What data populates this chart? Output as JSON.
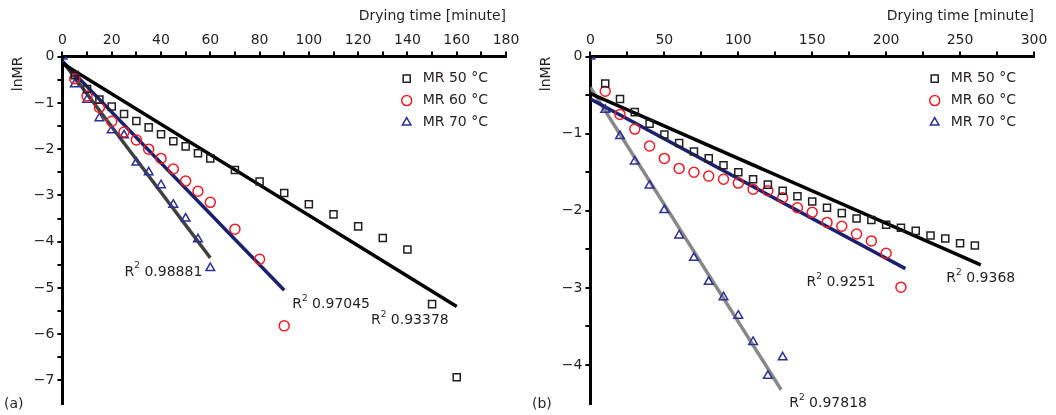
{
  "chart_data": [
    {
      "type": "scatter",
      "xlabel": "Drying time [minute]",
      "ylabel": "lnMR",
      "xlim": [
        0,
        180
      ],
      "ylim": [
        -7.5,
        0
      ],
      "xticks": [
        0,
        {
          "value": 10,
          "label": null
        },
        20,
        {
          "value": 30,
          "label": null
        },
        40,
        {
          "value": 50,
          "label": null
        },
        60,
        {
          "value": 70,
          "label": null
        },
        80,
        {
          "value": 90,
          "label": null
        },
        100,
        {
          "value": 110,
          "label": null
        },
        120,
        {
          "value": 130,
          "label": null
        },
        140,
        {
          "value": 150,
          "label": null
        },
        160,
        {
          "value": 170,
          "label": null
        },
        180
      ],
      "yticks": [
        0,
        {
          "value": -0.5,
          "label": null
        },
        -1,
        {
          "value": -1.5,
          "label": null
        },
        -2,
        {
          "value": -2.5,
          "label": null
        },
        -3,
        {
          "value": -3.5,
          "label": null
        },
        -4,
        {
          "value": -4.5,
          "label": null
        },
        -5,
        {
          "value": -5.5,
          "label": null
        },
        -6,
        {
          "value": -6.5,
          "label": null
        },
        -7
      ],
      "grid": false,
      "legend": "top right",
      "series": [
        {
          "name": "MR 50 °C",
          "type": "scatter",
          "marker": "square",
          "color": "#231f20",
          "x": [
            5,
            10,
            15,
            20,
            25,
            30,
            35,
            40,
            45,
            50,
            55,
            60,
            70,
            80,
            90,
            100,
            110,
            120,
            130,
            140,
            150,
            160
          ],
          "values": [
            -0.4,
            -0.7,
            -0.93,
            -1.08,
            -1.24,
            -1.39,
            -1.53,
            -1.68,
            -1.83,
            -1.94,
            -2.09,
            -2.2,
            -2.45,
            -2.7,
            -2.95,
            -3.19,
            -3.41,
            -3.67,
            -3.92,
            -4.17,
            -5.35,
            -6.93
          ]
        },
        {
          "name": "MR 60 °C",
          "type": "scatter",
          "marker": "circle",
          "color": "#ed1c24",
          "x": [
            5,
            10,
            15,
            20,
            25,
            30,
            35,
            40,
            45,
            50,
            55,
            60,
            70,
            80,
            90
          ],
          "values": [
            -0.48,
            -0.85,
            -1.1,
            -1.4,
            -1.63,
            -1.8,
            -2.0,
            -2.2,
            -2.43,
            -2.69,
            -2.91,
            -3.15,
            -3.73,
            -4.38,
            -5.82
          ]
        },
        {
          "name": "MR 70 °C",
          "type": "scatter",
          "marker": "triangle",
          "color": "#2e3192",
          "x": [
            0,
            5,
            10,
            15,
            20,
            25,
            30,
            35,
            40,
            45,
            50,
            55,
            60
          ],
          "values": [
            0,
            -0.6,
            -0.93,
            -1.33,
            -1.59,
            -1.7,
            -2.29,
            -2.5,
            -2.78,
            -3.2,
            -3.5,
            -3.95,
            -4.57
          ]
        },
        {
          "name": "R$^{2}$ 0.93378",
          "type": "line",
          "color": "#000000",
          "x": [
            0,
            160
          ],
          "values": [
            -0.15,
            -5.4
          ]
        },
        {
          "name": "R$^{2}$ 0.97045",
          "type": "line",
          "color": "#1a1f6e",
          "x": [
            0,
            90
          ],
          "values": [
            -0.1,
            -5.05
          ]
        },
        {
          "name": "R$^{2}$ 0.98881",
          "type": "line",
          "color": "#404040",
          "x": [
            0,
            60
          ],
          "values": [
            -0.1,
            -4.35
          ]
        }
      ],
      "annotations": [
        "(a)"
      ]
    },
    {
      "type": "scatter",
      "xlabel": "Drying time [minute]",
      "ylabel": "lnMR",
      "xlim": [
        0,
        300
      ],
      "ylim": [
        -4.5,
        0
      ],
      "xticks": [
        0,
        {
          "value": 25,
          "label": null
        },
        50,
        {
          "value": 75,
          "label": null
        },
        100,
        {
          "value": 125,
          "label": null
        },
        150,
        {
          "value": 175,
          "label": null
        },
        200,
        {
          "value": 225,
          "label": null
        },
        250,
        {
          "value": 275,
          "label": null
        },
        300
      ],
      "yticks": [
        0,
        {
          "value": -0.5,
          "label": null
        },
        -1,
        {
          "value": -1.5,
          "label": null
        },
        -2,
        {
          "value": -2.5,
          "label": null
        },
        -3,
        {
          "value": -3.5,
          "label": null
        },
        -4
      ],
      "grid": false,
      "legend": "top right",
      "series": [
        {
          "name": "MR 50 °C",
          "type": "scatter",
          "marker": "square",
          "color": "#231f20",
          "x": [
            10,
            20,
            30,
            40,
            50,
            60,
            70,
            80,
            90,
            100,
            110,
            120,
            130,
            140,
            150,
            160,
            170,
            180,
            190,
            200,
            210,
            220,
            230,
            240,
            250,
            260
          ],
          "values": [
            -0.35,
            -0.55,
            -0.72,
            -0.87,
            -1.01,
            -1.12,
            -1.23,
            -1.32,
            -1.41,
            -1.5,
            -1.59,
            -1.66,
            -1.74,
            -1.81,
            -1.88,
            -1.96,
            -2.03,
            -2.1,
            -2.12,
            -2.18,
            -2.22,
            -2.26,
            -2.32,
            -2.36,
            -2.42,
            -2.45
          ]
        },
        {
          "name": "MR 60 °C",
          "type": "scatter",
          "marker": "circle",
          "color": "#ed1c24",
          "x": [
            10,
            20,
            30,
            40,
            50,
            60,
            70,
            80,
            90,
            100,
            110,
            120,
            130,
            140,
            150,
            160,
            170,
            180,
            190,
            200,
            210
          ],
          "values": [
            -0.45,
            -0.75,
            -0.94,
            -1.16,
            -1.32,
            -1.45,
            -1.5,
            -1.55,
            -1.59,
            -1.64,
            -1.72,
            -1.74,
            -1.83,
            -1.96,
            -2.02,
            -2.15,
            -2.2,
            -2.3,
            -2.39,
            -2.55,
            -2.99
          ]
        },
        {
          "name": "MR 70 °C",
          "type": "scatter",
          "marker": "triangle",
          "color": "#2e3192",
          "x": [
            0,
            10,
            20,
            30,
            40,
            50,
            60,
            70,
            80,
            90,
            100,
            110,
            120,
            130
          ],
          "values": [
            0,
            -0.69,
            -1.03,
            -1.36,
            -1.67,
            -1.99,
            -2.32,
            -2.61,
            -2.92,
            -3.12,
            -3.36,
            -3.7,
            -4.14,
            -3.9
          ]
        },
        {
          "name": "R$^{2}$ 0.9368",
          "type": "line",
          "color": "#000000",
          "x": [
            0,
            264
          ],
          "values": [
            -0.48,
            -2.7
          ]
        },
        {
          "name": "R$^{2}$ 0.9251",
          "type": "line",
          "color": "#1a1f6e",
          "x": [
            0,
            213
          ],
          "values": [
            -0.55,
            -2.75
          ]
        },
        {
          "name": "R$^{2}$ 0.97818",
          "type": "line",
          "color": "#888888",
          "x": [
            0,
            129
          ],
          "values": [
            -0.4,
            -4.32
          ]
        }
      ],
      "annotations": [
        "(b)"
      ]
    }
  ]
}
